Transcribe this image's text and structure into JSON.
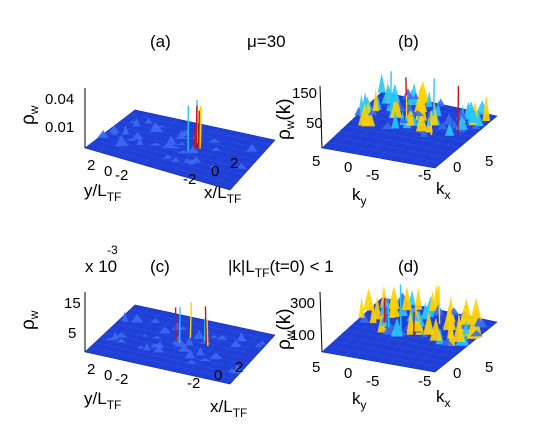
{
  "figure": {
    "top_title": "μ=30",
    "middle_title": "|k|L",
    "middle_title_sub": "TF",
    "middle_title_rest": "(t=0) < 1",
    "scale_prefix": "x 10",
    "scale_exponent": "-3"
  },
  "colors": {
    "surface_low": "#1f3fd6",
    "surface_mid": "#27c6ff",
    "surface_high": "#ffd200",
    "spike": "#c81414"
  },
  "chart_data": [
    {
      "type": "surface",
      "panel": "(a)",
      "zlabel": "ρ",
      "zlabel_sub": "w",
      "ylabel": "y/L",
      "ylabel_sub": "TF",
      "xlabel": "x/L",
      "xlabel_sub": "TF",
      "zticks": [
        "0.04",
        "0.01"
      ],
      "yticks": [
        "2",
        "0",
        "-2"
      ],
      "xticks": [
        "-2",
        "0",
        "2"
      ],
      "zlim": [
        0,
        0.045
      ]
    },
    {
      "type": "surface",
      "panel": "(b)",
      "zlabel": "ρ",
      "zlabel_sub": "w",
      "zlabel_tail": "(k)",
      "ylabel": "k",
      "ylabel_sub": "y",
      "xlabel": "k",
      "xlabel_sub": "x",
      "zticks": [
        "150",
        "50"
      ],
      "yticks": [
        "5",
        "0",
        "-5"
      ],
      "xticks": [
        "-5",
        "0",
        "5"
      ],
      "zlim": [
        0,
        160
      ]
    },
    {
      "type": "surface",
      "panel": "(c)",
      "zlabel": "ρ",
      "zlabel_sub": "w",
      "ylabel": "y/L",
      "ylabel_sub": "TF",
      "xlabel": "x/L",
      "xlabel_sub": "TF",
      "zticks": [
        "15",
        "5"
      ],
      "yticks": [
        "2",
        "0",
        "-2"
      ],
      "xticks": [
        "-2",
        "0",
        "2"
      ],
      "zlim": [
        0,
        17
      ]
    },
    {
      "type": "surface",
      "panel": "(d)",
      "zlabel": "ρ",
      "zlabel_sub": "w",
      "zlabel_tail": "(k)",
      "ylabel": "k",
      "ylabel_sub": "y",
      "xlabel": "k",
      "xlabel_sub": "x",
      "zticks": [
        "300",
        "100"
      ],
      "yticks": [
        "5",
        "0",
        "-5"
      ],
      "xticks": [
        "-5",
        "0",
        "5"
      ],
      "zlim": [
        0,
        330
      ]
    }
  ]
}
